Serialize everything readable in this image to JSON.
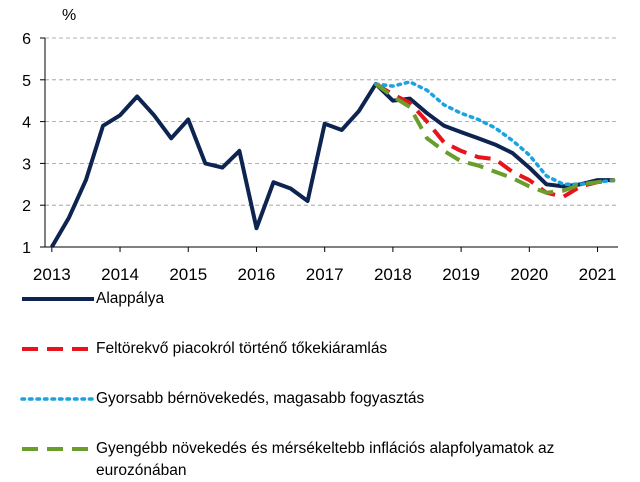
{
  "chart_data": {
    "type": "line",
    "unit": "%",
    "x": [
      2013,
      2013.25,
      2013.5,
      2013.75,
      2014,
      2014.25,
      2014.5,
      2014.75,
      2015,
      2015.25,
      2015.5,
      2015.75,
      2016,
      2016.25,
      2016.5,
      2016.75,
      2017,
      2017.25,
      2017.5,
      2017.75,
      2018,
      2018.25,
      2018.5,
      2018.75,
      2019,
      2019.25,
      2019.5,
      2019.75,
      2020,
      2020.25,
      2020.5,
      2020.75,
      2021,
      2021.25
    ],
    "series": [
      {
        "name": "Alappálya",
        "color": "#0d2350",
        "dash": "solid",
        "values": [
          1.0,
          1.7,
          2.6,
          3.9,
          4.15,
          4.6,
          4.15,
          3.6,
          4.05,
          3.0,
          2.9,
          3.3,
          1.45,
          2.55,
          2.4,
          2.1,
          3.95,
          3.8,
          4.25,
          4.9,
          4.5,
          4.55,
          4.2,
          3.9,
          3.75,
          3.6,
          3.45,
          3.25,
          2.9,
          2.5,
          2.45,
          2.5,
          2.6,
          2.6
        ]
      },
      {
        "name": "Feltörekvő piacokról történő tőkekiáramlás",
        "color": "#e8141c",
        "dash": "dashed",
        "values": [
          null,
          null,
          null,
          null,
          null,
          null,
          null,
          null,
          null,
          null,
          null,
          null,
          null,
          null,
          null,
          null,
          null,
          null,
          null,
          4.9,
          4.65,
          4.45,
          4.0,
          3.5,
          3.3,
          3.15,
          3.1,
          2.8,
          2.6,
          2.3,
          2.2,
          2.45,
          2.55,
          2.6
        ]
      },
      {
        "name": "Gyorsabb bérnövekedés, magasabb fogyasztás",
        "color": "#1aa3e0",
        "dash": "dotted",
        "values": [
          null,
          null,
          null,
          null,
          null,
          null,
          null,
          null,
          null,
          null,
          null,
          null,
          null,
          null,
          null,
          null,
          null,
          null,
          null,
          4.9,
          4.85,
          4.95,
          4.75,
          4.4,
          4.2,
          4.05,
          3.85,
          3.55,
          3.2,
          2.7,
          2.5,
          2.5,
          2.55,
          2.6
        ]
      },
      {
        "name": "Gyengébb növekedés és mérsékeltebb inflációs alapfolyamatok az eurozónában",
        "color": "#6a9e2c",
        "dash": "dashed",
        "values": [
          null,
          null,
          null,
          null,
          null,
          null,
          null,
          null,
          null,
          null,
          null,
          null,
          null,
          null,
          null,
          null,
          null,
          null,
          null,
          4.9,
          4.6,
          4.35,
          3.6,
          3.3,
          3.05,
          2.95,
          2.8,
          2.65,
          2.45,
          2.3,
          2.35,
          2.5,
          2.55,
          2.6
        ]
      }
    ],
    "xlim": [
      2012.9,
      2021.3
    ],
    "xticks": [
      2013,
      2014,
      2015,
      2016,
      2017,
      2018,
      2019,
      2020,
      2021
    ],
    "ylim": [
      1,
      6
    ],
    "yticks": [
      1,
      2,
      3,
      4,
      5,
      6
    ],
    "grid": true
  }
}
